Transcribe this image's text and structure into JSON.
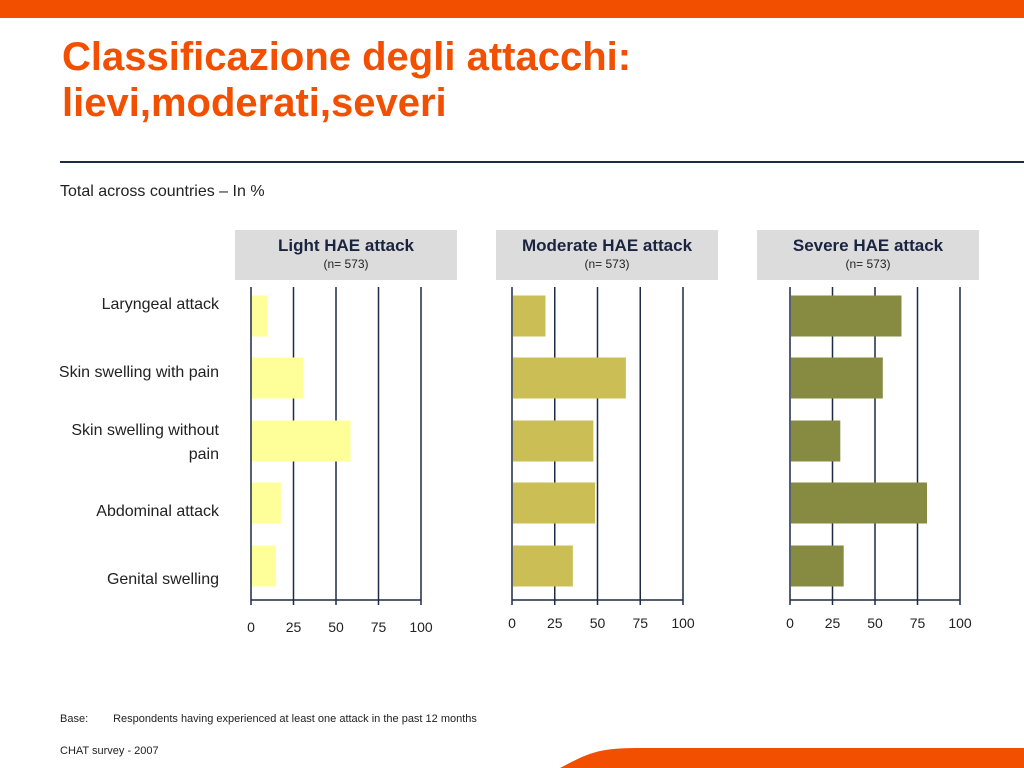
{
  "title_line1": "Classificazione degli attacchi:",
  "title_line2": "lievi,moderati,severi",
  "subtitle": "Total across countries – In %",
  "colors": {
    "accent": "#F24F00",
    "rule": "#1F2A44",
    "header_bg": "#DCDCDC",
    "header_text": "#1A2340",
    "gridline": "#1F2A44",
    "light_fill": "#FFFF99",
    "moderate_fill": "#CBBE55",
    "severe_fill": "#878B41"
  },
  "footer": {
    "base_label": "Base:",
    "base_text": "Respondents having experienced at least one attack in the past 12 months",
    "source": "CHAT survey  -  2007"
  },
  "chart_data": [
    {
      "type": "bar",
      "orientation": "horizontal",
      "title": "Light HAE attack",
      "subtitle": "(n= 573)",
      "categories": [
        "Laryngeal attack",
        "Skin swelling with pain",
        "Skin swelling without pain",
        "Abdominal attack",
        "Genital swelling"
      ],
      "values": [
        9,
        30,
        58,
        17,
        14
      ],
      "xlim": [
        0,
        100
      ],
      "ticks": [
        "0",
        "25",
        "50",
        "75",
        "100"
      ],
      "grid": true
    },
    {
      "type": "bar",
      "orientation": "horizontal",
      "title": "Moderate HAE attack",
      "subtitle": "(n= 573)",
      "categories": [
        "Laryngeal attack",
        "Skin swelling with pain",
        "Skin swelling without pain",
        "Abdominal attack",
        "Genital swelling"
      ],
      "values": [
        19,
        66,
        47,
        48,
        35
      ],
      "xlim": [
        0,
        100
      ],
      "ticks": [
        "0",
        "25",
        "50",
        "75",
        "100"
      ],
      "grid": true
    },
    {
      "type": "bar",
      "orientation": "horizontal",
      "title": "Severe HAE attack",
      "subtitle": "(n= 573)",
      "categories": [
        "Laryngeal attack",
        "Skin swelling with pain",
        "Skin swelling without pain",
        "Abdominal attack",
        "Genital swelling"
      ],
      "values": [
        65,
        54,
        29,
        80,
        31
      ],
      "xlim": [
        0,
        100
      ],
      "ticks": [
        "0",
        "25",
        "50",
        "75",
        "100"
      ],
      "grid": true
    }
  ],
  "category_labels": [
    {
      "line1": "Laryngeal attack",
      "line2": ""
    },
    {
      "line1": "Skin swelling with pain",
      "line2": ""
    },
    {
      "line1": "Skin swelling without",
      "line2": "pain"
    },
    {
      "line1": "Abdominal attack",
      "line2": ""
    },
    {
      "line1": "Genital swelling",
      "line2": ""
    }
  ]
}
